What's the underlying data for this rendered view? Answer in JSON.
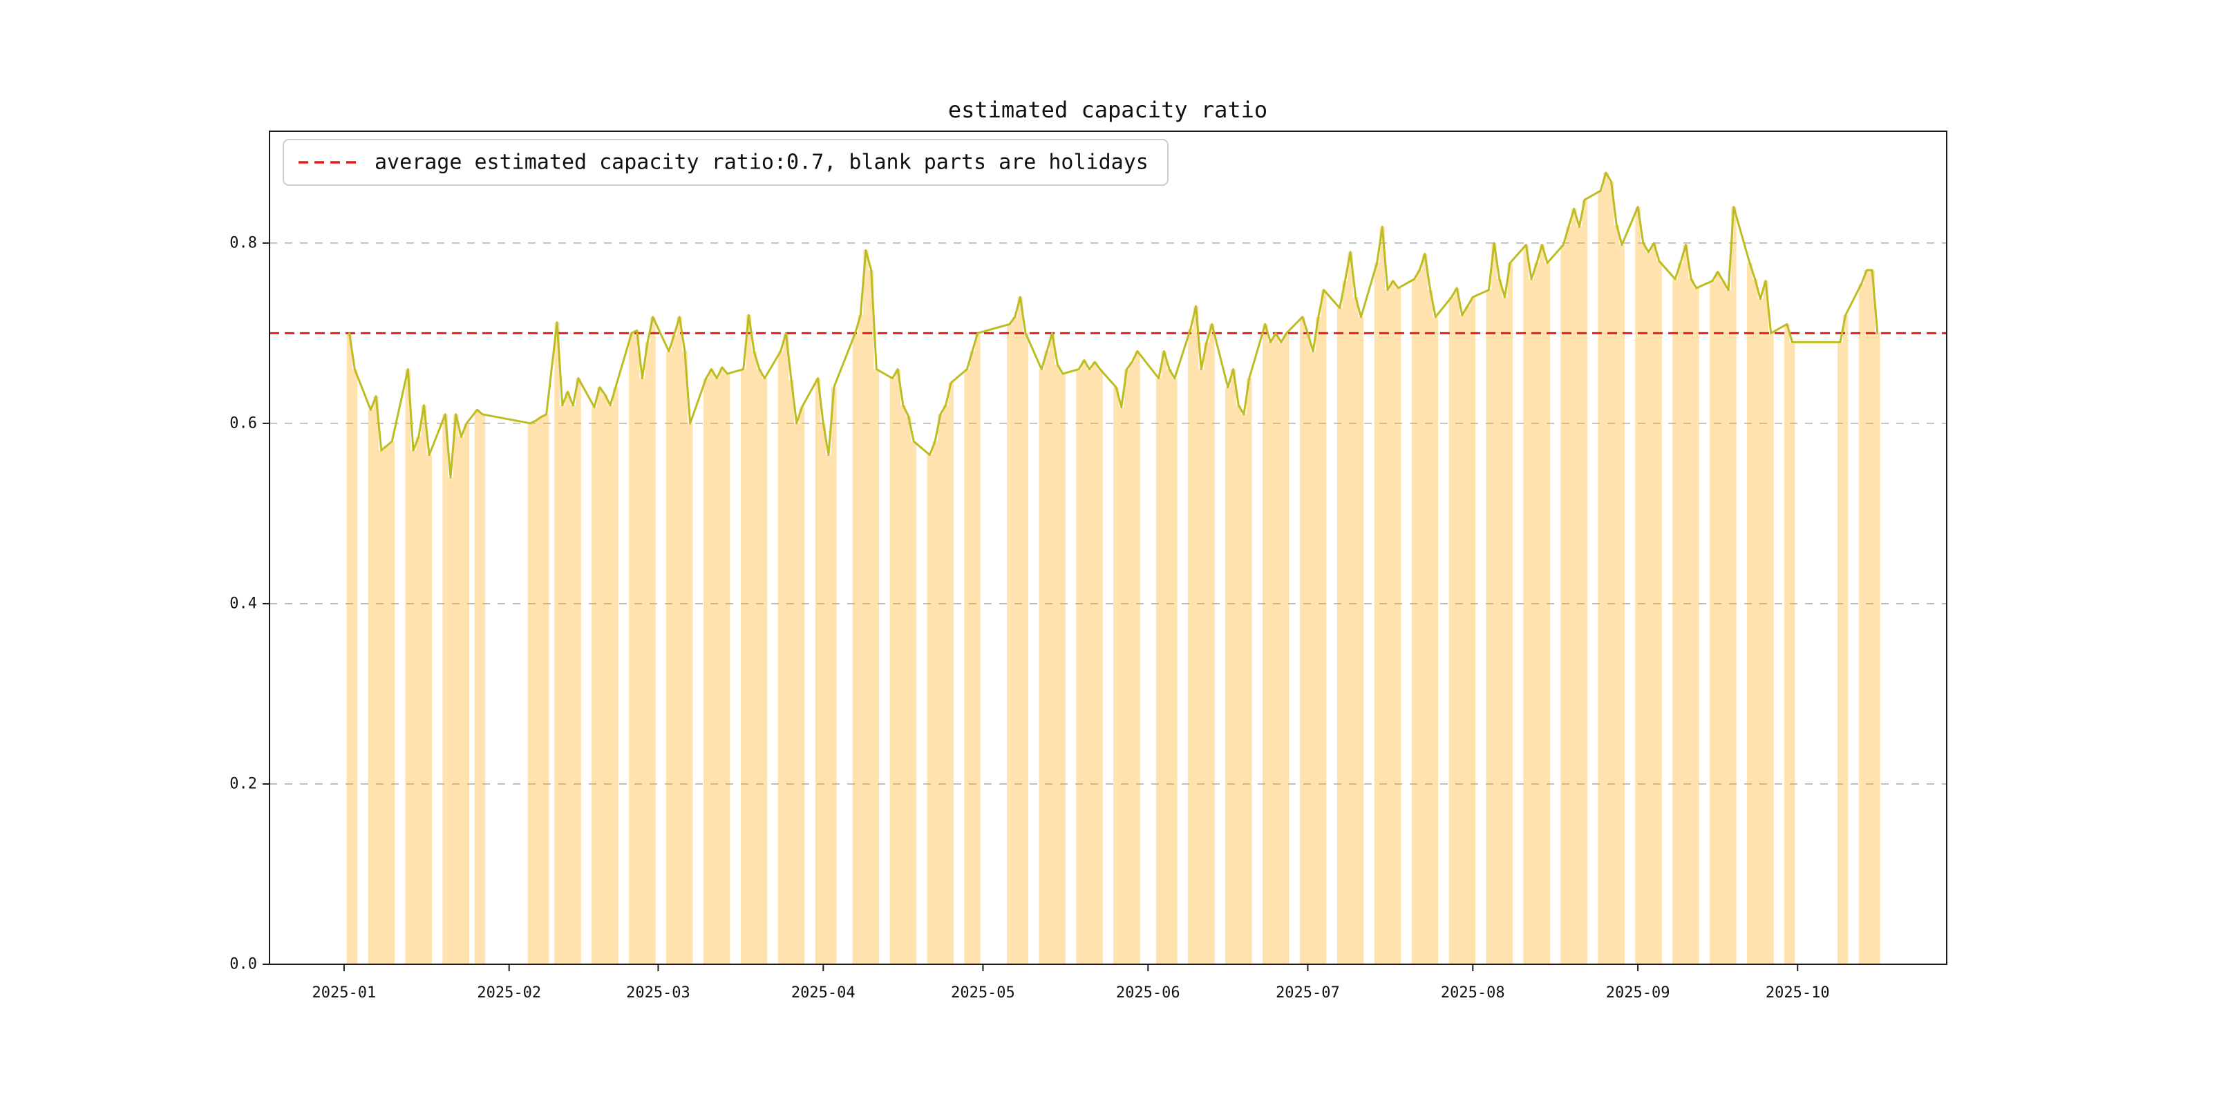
{
  "figure": {
    "title": "estimated capacity ratio",
    "background": "#ffffff",
    "colors": {
      "bar_fill": "rgba(255,165,0,0.32)",
      "line": "#bcbd22",
      "average_line": "#ec1c1c",
      "grid": "#b0b0b0",
      "spine": "#1a1a1a"
    },
    "legend": {
      "label": "average estimated capacity ratio:0.7, blank parts are holidays"
    }
  },
  "chart_data": {
    "type": "line",
    "title": "estimated capacity ratio",
    "average": 0.7,
    "note": "blank parts are holidays",
    "grid": true,
    "legend_position": "upper left",
    "ylim": [
      0,
      0.924
    ],
    "yticks": [
      0.0,
      0.2,
      0.4,
      0.6,
      0.8
    ],
    "xlim": [
      "2024-12-18",
      "2025-10-29"
    ],
    "xtick_labels": [
      "2025-01",
      "2025-02",
      "2025-03",
      "2025-04",
      "2025-05",
      "2025-06",
      "2025-07",
      "2025-08",
      "2025-09",
      "2025-10"
    ],
    "series": [
      {
        "name": "estimated capacity ratio",
        "dates": [
          "2025-01-02",
          "2025-01-03",
          "2025-01-06",
          "2025-01-07",
          "2025-01-08",
          "2025-01-09",
          "2025-01-10",
          "2025-01-13",
          "2025-01-14",
          "2025-01-15",
          "2025-01-16",
          "2025-01-17",
          "2025-01-20",
          "2025-01-21",
          "2025-01-22",
          "2025-01-23",
          "2025-01-24",
          "2025-01-26",
          "2025-01-27",
          "2025-02-05",
          "2025-02-06",
          "2025-02-07",
          "2025-02-08",
          "2025-02-10",
          "2025-02-11",
          "2025-02-12",
          "2025-02-13",
          "2025-02-14",
          "2025-02-17",
          "2025-02-18",
          "2025-02-19",
          "2025-02-20",
          "2025-02-21",
          "2025-02-24",
          "2025-02-25",
          "2025-02-26",
          "2025-02-27",
          "2025-02-28",
          "2025-03-03",
          "2025-03-04",
          "2025-03-05",
          "2025-03-06",
          "2025-03-07",
          "2025-03-10",
          "2025-03-11",
          "2025-03-12",
          "2025-03-13",
          "2025-03-14",
          "2025-03-17",
          "2025-03-18",
          "2025-03-19",
          "2025-03-20",
          "2025-03-21",
          "2025-03-24",
          "2025-03-25",
          "2025-03-26",
          "2025-03-27",
          "2025-03-28",
          "2025-03-31",
          "2025-04-01",
          "2025-04-02",
          "2025-04-03",
          "2025-04-07",
          "2025-04-08",
          "2025-04-09",
          "2025-04-10",
          "2025-04-11",
          "2025-04-14",
          "2025-04-15",
          "2025-04-16",
          "2025-04-17",
          "2025-04-18",
          "2025-04-21",
          "2025-04-22",
          "2025-04-23",
          "2025-04-24",
          "2025-04-25",
          "2025-04-28",
          "2025-04-29",
          "2025-04-30",
          "2025-05-06",
          "2025-05-07",
          "2025-05-08",
          "2025-05-09",
          "2025-05-12",
          "2025-05-13",
          "2025-05-14",
          "2025-05-15",
          "2025-05-16",
          "2025-05-19",
          "2025-05-20",
          "2025-05-21",
          "2025-05-22",
          "2025-05-23",
          "2025-05-26",
          "2025-05-27",
          "2025-05-28",
          "2025-05-29",
          "2025-05-30",
          "2025-06-03",
          "2025-06-04",
          "2025-06-05",
          "2025-06-06",
          "2025-06-09",
          "2025-06-10",
          "2025-06-11",
          "2025-06-12",
          "2025-06-13",
          "2025-06-16",
          "2025-06-17",
          "2025-06-18",
          "2025-06-19",
          "2025-06-20",
          "2025-06-23",
          "2025-06-24",
          "2025-06-25",
          "2025-06-26",
          "2025-06-27",
          "2025-06-30",
          "2025-07-01",
          "2025-07-02",
          "2025-07-03",
          "2025-07-04",
          "2025-07-07",
          "2025-07-08",
          "2025-07-09",
          "2025-07-10",
          "2025-07-11",
          "2025-07-14",
          "2025-07-15",
          "2025-07-16",
          "2025-07-17",
          "2025-07-18",
          "2025-07-21",
          "2025-07-22",
          "2025-07-23",
          "2025-07-24",
          "2025-07-25",
          "2025-07-28",
          "2025-07-29",
          "2025-07-30",
          "2025-07-31",
          "2025-08-01",
          "2025-08-04",
          "2025-08-05",
          "2025-08-06",
          "2025-08-07",
          "2025-08-08",
          "2025-08-11",
          "2025-08-12",
          "2025-08-13",
          "2025-08-14",
          "2025-08-15",
          "2025-08-18",
          "2025-08-19",
          "2025-08-20",
          "2025-08-21",
          "2025-08-22",
          "2025-08-25",
          "2025-08-26",
          "2025-08-27",
          "2025-08-28",
          "2025-08-29",
          "2025-09-01",
          "2025-09-02",
          "2025-09-03",
          "2025-09-04",
          "2025-09-05",
          "2025-09-08",
          "2025-09-09",
          "2025-09-10",
          "2025-09-11",
          "2025-09-12",
          "2025-09-15",
          "2025-09-16",
          "2025-09-17",
          "2025-09-18",
          "2025-09-19",
          "2025-09-22",
          "2025-09-23",
          "2025-09-24",
          "2025-09-25",
          "2025-09-26",
          "2025-09-29",
          "2025-09-30",
          "2025-10-09",
          "2025-10-10",
          "2025-10-13",
          "2025-10-14",
          "2025-10-15",
          "2025-10-16"
        ],
        "values": [
          0.7,
          0.66,
          0.615,
          0.63,
          0.57,
          0.575,
          0.58,
          0.66,
          0.57,
          0.585,
          0.62,
          0.565,
          0.61,
          0.54,
          0.61,
          0.585,
          0.6,
          0.615,
          0.61,
          0.6,
          0.603,
          0.607,
          0.61,
          0.712,
          0.62,
          0.635,
          0.62,
          0.65,
          0.618,
          0.64,
          0.632,
          0.62,
          0.64,
          0.7,
          0.703,
          0.65,
          0.69,
          0.718,
          0.68,
          0.698,
          0.718,
          0.68,
          0.6,
          0.65,
          0.66,
          0.65,
          0.662,
          0.655,
          0.66,
          0.72,
          0.68,
          0.66,
          0.65,
          0.68,
          0.7,
          0.648,
          0.6,
          0.618,
          0.65,
          0.6,
          0.565,
          0.64,
          0.7,
          0.72,
          0.792,
          0.77,
          0.66,
          0.65,
          0.66,
          0.62,
          0.608,
          0.58,
          0.565,
          0.58,
          0.61,
          0.62,
          0.645,
          0.66,
          0.68,
          0.7,
          0.71,
          0.718,
          0.74,
          0.7,
          0.66,
          0.68,
          0.7,
          0.665,
          0.655,
          0.66,
          0.67,
          0.66,
          0.668,
          0.66,
          0.64,
          0.618,
          0.66,
          0.668,
          0.68,
          0.65,
          0.68,
          0.66,
          0.65,
          0.705,
          0.73,
          0.66,
          0.69,
          0.71,
          0.64,
          0.66,
          0.62,
          0.61,
          0.65,
          0.71,
          0.69,
          0.7,
          0.69,
          0.7,
          0.718,
          0.7,
          0.68,
          0.718,
          0.748,
          0.728,
          0.758,
          0.79,
          0.74,
          0.718,
          0.778,
          0.818,
          0.748,
          0.758,
          0.75,
          0.76,
          0.77,
          0.788,
          0.748,
          0.718,
          0.74,
          0.75,
          0.72,
          0.73,
          0.74,
          0.748,
          0.8,
          0.76,
          0.74,
          0.778,
          0.798,
          0.76,
          0.778,
          0.798,
          0.778,
          0.798,
          0.818,
          0.838,
          0.818,
          0.848,
          0.858,
          0.878,
          0.868,
          0.82,
          0.798,
          0.84,
          0.8,
          0.79,
          0.8,
          0.78,
          0.76,
          0.778,
          0.798,
          0.76,
          0.75,
          0.758,
          0.768,
          0.758,
          0.748,
          0.84,
          0.778,
          0.76,
          0.738,
          0.758,
          0.7,
          0.71,
          0.69,
          0.69,
          0.72,
          0.755,
          0.77,
          0.77,
          0.7
        ]
      }
    ]
  }
}
